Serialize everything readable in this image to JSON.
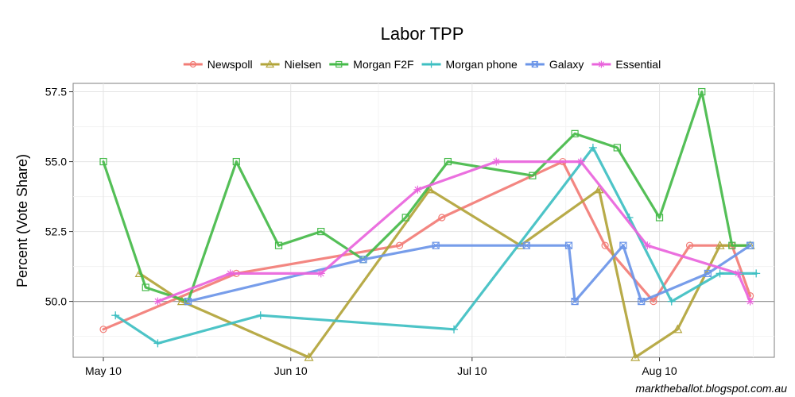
{
  "chart_data": {
    "type": "line",
    "title": "Labor TPP",
    "xlabel": "",
    "ylabel": "Percent (Vote Share)",
    "ylim": [
      48,
      57.8
    ],
    "xlim": [
      "2010-05-05",
      "2010-08-29"
    ],
    "x_ticks": [
      {
        "date": "2010-05-10",
        "label": "May 10"
      },
      {
        "date": "2010-06-10",
        "label": "Jun 10"
      },
      {
        "date": "2010-07-10",
        "label": "Jul 10"
      },
      {
        "date": "2010-08-10",
        "label": "Aug 10"
      }
    ],
    "y_ticks": [
      50.0,
      52.5,
      55.0,
      57.5
    ],
    "y_tick_labels": [
      "50.0",
      "52.5",
      "55.0",
      "57.5"
    ],
    "reference_line": 50,
    "grid": true,
    "legend_position": "top",
    "series": [
      {
        "name": "Newspoll",
        "color": "#f27c76",
        "marker": "circle",
        "points": [
          [
            "2010-05-10",
            49
          ],
          [
            "2010-06-01",
            51
          ],
          [
            "2010-06-28",
            52
          ],
          [
            "2010-07-05",
            53
          ],
          [
            "2010-07-25",
            55
          ],
          [
            "2010-08-01",
            52
          ],
          [
            "2010-08-09",
            50
          ],
          [
            "2010-08-15",
            52
          ],
          [
            "2010-08-22",
            52
          ],
          [
            "2010-08-25",
            50.2
          ]
        ]
      },
      {
        "name": "Nielsen",
        "color": "#b2a43a",
        "marker": "triangle",
        "points": [
          [
            "2010-05-16",
            51
          ],
          [
            "2010-05-23",
            50
          ],
          [
            "2010-06-13",
            48
          ],
          [
            "2010-07-03",
            54
          ],
          [
            "2010-07-18",
            52
          ],
          [
            "2010-07-31",
            54
          ],
          [
            "2010-08-06",
            48
          ],
          [
            "2010-08-13",
            49
          ],
          [
            "2010-08-20",
            52
          ],
          [
            "2010-08-25",
            52
          ]
        ]
      },
      {
        "name": "Morgan F2F",
        "color": "#45ba49",
        "marker": "square",
        "points": [
          [
            "2010-05-10",
            55
          ],
          [
            "2010-05-17",
            50.5
          ],
          [
            "2010-05-24",
            50
          ],
          [
            "2010-06-01",
            55
          ],
          [
            "2010-06-08",
            52
          ],
          [
            "2010-06-15",
            52.5
          ],
          [
            "2010-06-22",
            51.5
          ],
          [
            "2010-06-29",
            53
          ],
          [
            "2010-07-06",
            55
          ],
          [
            "2010-07-20",
            54.5
          ],
          [
            "2010-07-27",
            56
          ],
          [
            "2010-08-03",
            55.5
          ],
          [
            "2010-08-10",
            53
          ],
          [
            "2010-08-17",
            57.5
          ],
          [
            "2010-08-22",
            52
          ],
          [
            "2010-08-25",
            52
          ]
        ]
      },
      {
        "name": "Morgan phone",
        "color": "#3ebfc2",
        "marker": "plus",
        "points": [
          [
            "2010-05-12",
            49.5
          ],
          [
            "2010-05-19",
            48.5
          ],
          [
            "2010-06-05",
            49.5
          ],
          [
            "2010-07-07",
            49
          ],
          [
            "2010-07-30",
            55.5
          ],
          [
            "2010-08-05",
            53
          ],
          [
            "2010-08-12",
            50
          ],
          [
            "2010-08-20",
            51
          ],
          [
            "2010-08-23",
            51
          ],
          [
            "2010-08-26",
            51
          ]
        ]
      },
      {
        "name": "Galaxy",
        "color": "#6b95e8",
        "marker": "square-x",
        "points": [
          [
            "2010-05-24",
            50
          ],
          [
            "2010-06-22",
            51.5
          ],
          [
            "2010-07-04",
            52
          ],
          [
            "2010-07-19",
            52
          ],
          [
            "2010-07-26",
            52
          ],
          [
            "2010-07-27",
            50
          ],
          [
            "2010-08-04",
            52
          ],
          [
            "2010-08-07",
            50
          ],
          [
            "2010-08-18",
            51
          ],
          [
            "2010-08-25",
            52
          ]
        ]
      },
      {
        "name": "Essential",
        "color": "#e964dc",
        "marker": "asterisk",
        "points": [
          [
            "2010-05-19",
            50
          ],
          [
            "2010-05-31",
            51
          ],
          [
            "2010-06-15",
            51
          ],
          [
            "2010-07-01",
            54
          ],
          [
            "2010-07-14",
            55
          ],
          [
            "2010-07-28",
            55
          ],
          [
            "2010-08-08",
            52
          ],
          [
            "2010-08-23",
            51
          ],
          [
            "2010-08-25",
            50
          ]
        ]
      }
    ]
  },
  "credit": "marktheballot.blogspot.com.au"
}
